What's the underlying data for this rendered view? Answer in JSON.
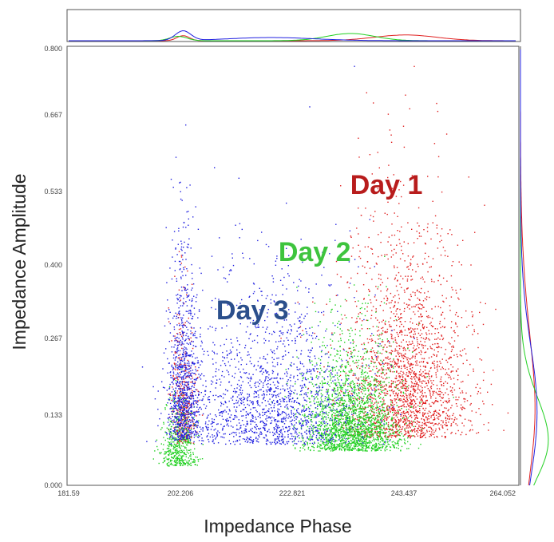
{
  "chart_data": {
    "type": "scatter",
    "title": "",
    "xlabel": "Impedance Phase",
    "ylabel": "Impedance Amplitude",
    "xlim": [
      181.59,
      275.0
    ],
    "ylim": [
      0.0,
      0.8
    ],
    "xticks": [
      "181.59",
      "202.206",
      "222.821",
      "243.437",
      "264.052"
    ],
    "yticks": [
      "0.000",
      "0.133",
      "0.267",
      "0.400",
      "0.533",
      "0.667",
      "0.800"
    ],
    "marginal_plots": [
      "top: phase density per series",
      "right: amplitude density per series"
    ],
    "series": [
      {
        "name": "Day 1",
        "color": "#e02020",
        "clusters": [
          {
            "center": [
              252.0,
              0.16
            ],
            "spread": [
              6.5,
              0.12
            ],
            "weight": 0.85
          },
          {
            "center": [
              205.5,
              0.12
            ],
            "spread": [
              1.3,
              0.07
            ],
            "weight": 0.15
          }
        ]
      },
      {
        "name": "Day 2",
        "color": "#20d020",
        "clusters": [
          {
            "center": [
              240.5,
              0.1
            ],
            "spread": [
              5.0,
              0.06
            ],
            "weight": 0.82
          },
          {
            "center": [
              204.5,
              0.06
            ],
            "spread": [
              1.8,
              0.04
            ],
            "weight": 0.18
          }
        ]
      },
      {
        "name": "Day 3",
        "color": "#2020e0",
        "clusters": [
          {
            "center": [
              224.0,
              0.13
            ],
            "spread": [
              9.0,
              0.09
            ],
            "weight": 0.65
          },
          {
            "center": [
              205.5,
              0.15
            ],
            "spread": [
              1.6,
              0.11
            ],
            "weight": 0.35
          }
        ]
      }
    ],
    "annotations": [
      {
        "text": "Day 1",
        "x": 248.0,
        "y": 0.535,
        "color": "#b81c1c"
      },
      {
        "text": "Day 2",
        "x": 233.0,
        "y": 0.412,
        "color": "#3ec43e"
      },
      {
        "text": "Day 3",
        "x": 220.0,
        "y": 0.305,
        "color": "#2b4f8c"
      }
    ]
  }
}
